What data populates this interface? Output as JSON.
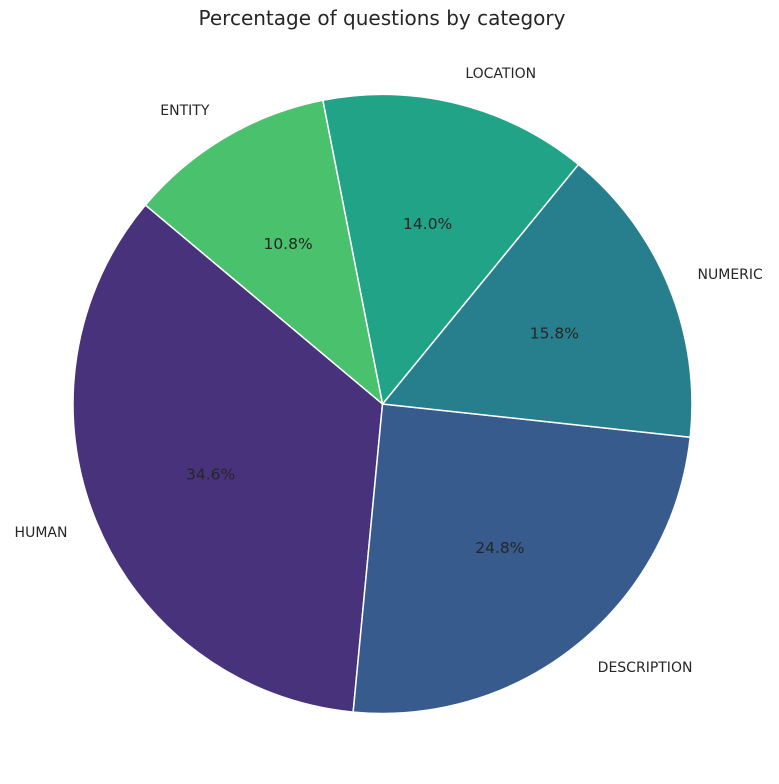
{
  "chart_data": {
    "type": "pie",
    "title": "Percentage of questions by category",
    "slices": [
      {
        "label": "HUMAN",
        "value": 34.6,
        "pct_text": "34.6%",
        "color": "#48327c"
      },
      {
        "label": "DESCRIPTION",
        "value": 24.8,
        "pct_text": "24.8%",
        "color": "#365b8c"
      },
      {
        "label": "NUMERIC",
        "value": 15.8,
        "pct_text": "15.8%",
        "color": "#277f8e"
      },
      {
        "label": "LOCATION",
        "value": 14.0,
        "pct_text": "14.0%",
        "color": "#20a386"
      },
      {
        "label": "ENTITY",
        "value": 10.8,
        "pct_text": "10.8%",
        "color": "#4ac16d"
      }
    ],
    "start_angle_deg": 140,
    "direction": "counterclockwise",
    "edge_color": "#ffffff"
  }
}
